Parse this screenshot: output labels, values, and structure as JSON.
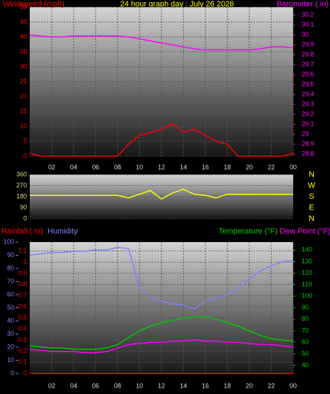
{
  "chart_data": [
    {
      "type": "line",
      "title": "24 hour graph day : July 26 2026",
      "x": [
        0,
        1,
        2,
        3,
        4,
        5,
        6,
        7,
        8,
        9,
        10,
        11,
        12,
        13,
        14,
        15,
        16,
        17,
        18,
        19,
        20,
        21,
        22,
        23,
        24
      ],
      "xlim": [
        0,
        24
      ],
      "xticks": [
        {
          "value": 2,
          "label": "02"
        },
        {
          "value": 4,
          "label": "04"
        },
        {
          "value": 6,
          "label": "06"
        },
        {
          "value": 8,
          "label": "08"
        },
        10,
        12,
        14,
        16,
        18,
        20,
        22,
        {
          "value": 24,
          "label": "00"
        }
      ],
      "ylim": [
        0,
        50
      ],
      "yticks": [
        0,
        5,
        10,
        15,
        20,
        25,
        30,
        35,
        40,
        45,
        50
      ],
      "y2lim": [
        28.78,
        30.28
      ],
      "y2ticks": [
        28.8,
        28.9,
        29,
        29.1,
        29.2,
        29.3,
        29.4,
        29.5,
        29.6,
        29.7,
        29.8,
        29.9,
        30,
        30.1,
        30.2
      ],
      "grid": true,
      "series": [
        {
          "name": "Windspeed (mph)",
          "color": "#ff0000",
          "axis": "y",
          "values": [
            1,
            0,
            0,
            0,
            0,
            0,
            0,
            0,
            0,
            4,
            7,
            8,
            9,
            11,
            8,
            9,
            7,
            5,
            4,
            0,
            0,
            0,
            0,
            0,
            1
          ]
        },
        {
          "name": "Barometer (.in)",
          "color": "#ff00ff",
          "axis": "y2",
          "values": [
            30.0,
            29.99,
            29.98,
            29.98,
            29.99,
            29.99,
            29.99,
            29.99,
            29.99,
            29.98,
            29.96,
            29.94,
            29.92,
            29.9,
            29.88,
            29.86,
            29.85,
            29.85,
            29.85,
            29.85,
            29.85,
            29.86,
            29.88,
            29.88,
            29.87
          ]
        }
      ]
    },
    {
      "type": "line",
      "x": [
        0,
        1,
        2,
        3,
        4,
        5,
        6,
        7,
        8,
        9,
        10,
        11,
        12,
        13,
        14,
        15,
        16,
        17,
        18,
        19,
        20,
        21,
        22,
        23,
        24
      ],
      "xlim": [
        0,
        24
      ],
      "ylim": [
        0,
        360
      ],
      "yticks": [
        0,
        90,
        180,
        270,
        360
      ],
      "direction_labels": [
        "N",
        "E",
        "S",
        "W",
        "N"
      ],
      "grid": true,
      "series": [
        {
          "name": null,
          "color": "#ffff00",
          "axis": "y",
          "values": [
            190,
            190,
            190,
            190,
            190,
            190,
            190,
            190,
            190,
            170,
            200,
            230,
            160,
            210,
            240,
            200,
            190,
            170,
            200,
            200,
            200,
            200,
            200,
            200,
            200
          ]
        }
      ]
    },
    {
      "type": "line",
      "x": [
        0,
        1,
        2,
        3,
        4,
        5,
        6,
        7,
        8,
        9,
        10,
        11,
        12,
        13,
        14,
        15,
        16,
        17,
        18,
        19,
        20,
        21,
        22,
        23,
        24
      ],
      "xlim": [
        0,
        24
      ],
      "xticks": [
        {
          "value": 2,
          "label": "02"
        },
        {
          "value": 4,
          "label": "04"
        },
        {
          "value": 6,
          "label": "06"
        },
        {
          "value": 8,
          "label": "08"
        },
        10,
        12,
        14,
        16,
        18,
        20,
        22,
        {
          "value": 24,
          "label": "00"
        }
      ],
      "ylim": [
        0,
        1.18
      ],
      "yticks": [
        0,
        0.1,
        0.2,
        0.3,
        0.4,
        0.5,
        0.6,
        0.7,
        0.8,
        0.9,
        1,
        1.1
      ],
      "y2lim": [
        33,
        147
      ],
      "y2ticks": [
        40,
        50,
        60,
        70,
        80,
        90,
        100,
        110,
        120,
        130,
        140
      ],
      "y3lim": [
        0,
        100
      ],
      "y3ticks": [
        0,
        10,
        20,
        30,
        40,
        50,
        60,
        70,
        80,
        90,
        100
      ],
      "grid": true,
      "series": [
        {
          "name": "Rainfall (.in)",
          "color": "#ff0000",
          "axis": "y",
          "values": [
            0,
            0,
            0,
            0,
            0,
            0,
            0,
            0,
            0,
            0,
            0,
            0,
            0,
            0,
            0,
            0,
            0,
            0,
            0,
            0,
            0,
            0,
            0,
            0,
            0
          ]
        },
        {
          "name": "Humidity",
          "color": "#7f7fff",
          "axis": "y3",
          "values": [
            90,
            91,
            92,
            92,
            93,
            93,
            94,
            94,
            96,
            95,
            65,
            58,
            55,
            53,
            52,
            49,
            55,
            57,
            60,
            65,
            72,
            78,
            82,
            85,
            86
          ]
        },
        {
          "name": "Temperature (°F)",
          "color": "#00cc00",
          "axis": "y2",
          "values": [
            57,
            56,
            55,
            55,
            54,
            54,
            54,
            55,
            58,
            64,
            70,
            74,
            77,
            79,
            81,
            82,
            82,
            80,
            77,
            74,
            70,
            66,
            63,
            62,
            61
          ]
        },
        {
          "name": "Dew Point (°F)",
          "color": "#ff00ff",
          "axis": "y2",
          "values": [
            54,
            53,
            52,
            52,
            52,
            51,
            51,
            52,
            55,
            58,
            59,
            60,
            60,
            61,
            61,
            62,
            61,
            61,
            60,
            60,
            59,
            58,
            58,
            57,
            56
          ]
        }
      ]
    }
  ]
}
